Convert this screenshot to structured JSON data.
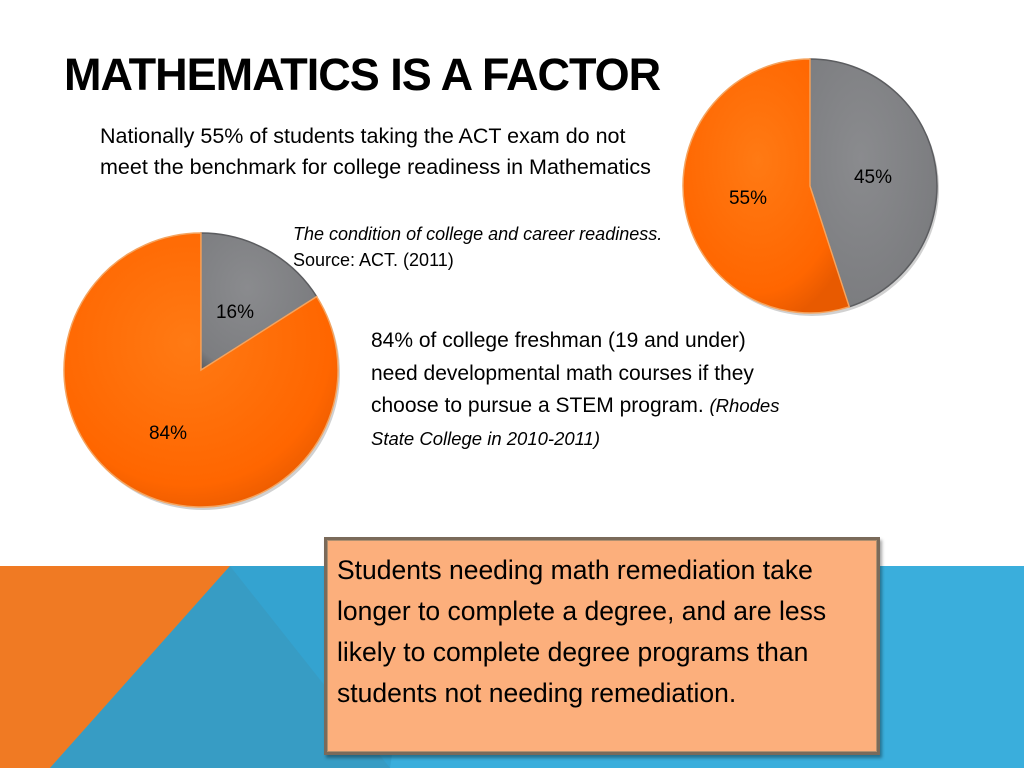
{
  "slide": {
    "title": "MATHEMATICS IS A FACTOR",
    "paragraph1": "Nationally 55%  of students taking the ACT exam do not meet the benchmark for college readiness  in Mathematics",
    "source1_italic": "The condition of college and career readiness.",
    "source1_plain": "Source: ACT. (2011)",
    "paragraph2": "84% of college freshman (19 and under) need developmental math courses if they choose to pursue a STEM program.",
    "source2": "(Rhodes State College in 2010-2011)",
    "callout": "Students needing math remediation take longer to complete a degree, and are less likely to complete degree programs than students not needing remediation."
  },
  "colors": {
    "orange": "#ff6a00",
    "gray": "#7f8083",
    "band_orange": "#f07a23",
    "band_blue": "#3aaedc",
    "callout_fill": "#fcaf7c"
  },
  "chart_data": [
    {
      "type": "pie",
      "labels": [
        "16%",
        "84%"
      ],
      "values": [
        16,
        84
      ],
      "colors": [
        "#7f8083",
        "#ff6a00"
      ]
    },
    {
      "type": "pie",
      "labels": [
        "45%",
        "55%"
      ],
      "values": [
        45,
        55
      ],
      "colors": [
        "#7f8083",
        "#ff6a00"
      ]
    }
  ]
}
